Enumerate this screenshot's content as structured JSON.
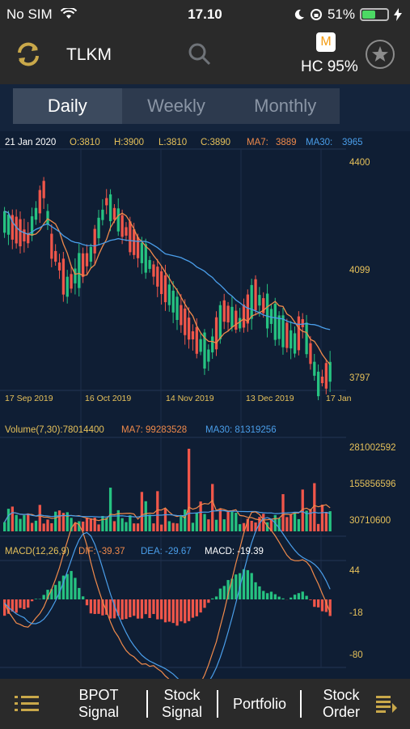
{
  "status_bar": {
    "carrier": "No SIM",
    "time": "17.10",
    "battery": "51%",
    "battery_level": 0.51
  },
  "header": {
    "ticker": "TLKM",
    "badge": "M",
    "hc": "HC 95%"
  },
  "tabs": [
    {
      "label": "Daily",
      "active": true
    },
    {
      "label": "Weekly",
      "active": false
    },
    {
      "label": "Monthly",
      "active": false
    }
  ],
  "price_info": {
    "date": "21 Jan 2020",
    "open": "O:3810",
    "high": "H:3900",
    "low": "L:3810",
    "close": "C:3890",
    "ma7_label": "MA7:",
    "ma7": "3889",
    "ma30_label": "MA30:",
    "ma30": "3965"
  },
  "volume_info": {
    "label": "Volume(7,30):78014400",
    "ma7": "MA7: 99283528",
    "ma30": "MA30: 81319256"
  },
  "macd_info": {
    "label": "MACD(12,26,9)",
    "dif": "DIF: -39.37",
    "dea": "DEA: -29.67",
    "macd": "MACD: -19.39"
  },
  "colors": {
    "up": "#26c281",
    "down": "#f0564a",
    "ma7": "#f08a4b",
    "ma30": "#4a9eea",
    "axis_text": "#e6c15a",
    "background": "#0f1e34"
  },
  "chart_data": [
    {
      "type": "candlestick",
      "y_ticks": [
        "4400",
        "4099",
        "3797"
      ],
      "x_ticks": [
        "17 Sep 2019",
        "16 Oct 2019",
        "14 Nov 2019",
        "13 Dec 2019",
        "17 Jan"
      ],
      "ylim": [
        3780,
        4410
      ],
      "series": [
        {
          "name": "MA7"
        },
        {
          "name": "MA30"
        }
      ]
    },
    {
      "type": "bar",
      "y_ticks": [
        "281002592",
        "155856596",
        "30710600"
      ],
      "series": [
        {
          "name": "MA7"
        },
        {
          "name": "MA30"
        }
      ]
    },
    {
      "type": "bar",
      "y_ticks": [
        "44",
        "-18",
        "-80"
      ],
      "series": [
        {
          "name": "DIF"
        },
        {
          "name": "DEA"
        }
      ]
    }
  ],
  "bottom_nav": [
    {
      "line1": "BPOT",
      "line2": "Signal"
    },
    {
      "line1": "Stock",
      "line2": "Signal"
    },
    {
      "line1": "Portfolio",
      "line2": ""
    },
    {
      "line1": "Stock",
      "line2": "Order"
    }
  ]
}
